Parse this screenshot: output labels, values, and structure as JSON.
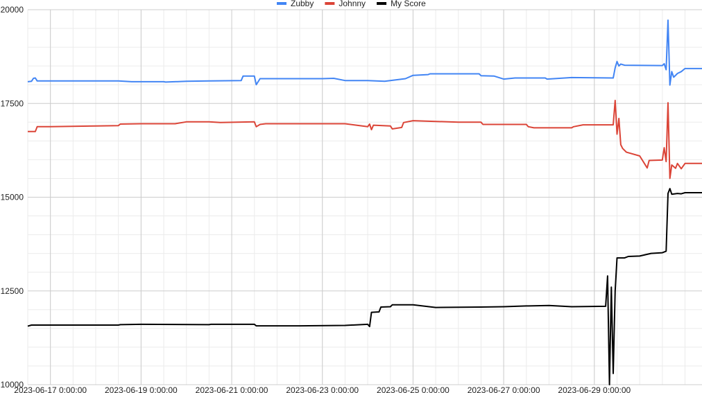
{
  "chart_data": {
    "type": "line",
    "legend_position": "top",
    "grid": true,
    "x_axis": {
      "kind": "date",
      "range": [
        "2023-06-16 12:00",
        "2023-07-01 09:00"
      ],
      "tick_labels": [
        {
          "label": "2023-06-17 0:00:00",
          "value": "2023-06-17 00:00"
        },
        {
          "label": "2023-06-19 0:00:00",
          "value": "2023-06-19 00:00"
        },
        {
          "label": "2023-06-21 0:00:00",
          "value": "2023-06-21 00:00"
        },
        {
          "label": "2023-06-23 0:00:00",
          "value": "2023-06-23 00:00"
        },
        {
          "label": "2023-06-25 0:00:00",
          "value": "2023-06-25 00:00"
        },
        {
          "label": "2023-06-27 0:00:00",
          "value": "2023-06-27 00:00"
        },
        {
          "label": "2023-06-29 0:00:00",
          "value": "2023-06-29 00:00"
        }
      ]
    },
    "y_axis": {
      "range": [
        10000,
        20000
      ],
      "tick_labels": [
        {
          "label": "10000",
          "value": 10000
        },
        {
          "label": "12500",
          "value": 12500
        },
        {
          "label": "15000",
          "value": 15000
        },
        {
          "label": "17500",
          "value": 17500
        },
        {
          "label": "20000",
          "value": 20000
        }
      ]
    },
    "series": [
      {
        "name": "Zubby",
        "color": "#4285f4",
        "points": [
          [
            "2023-06-16 12:00",
            18080
          ],
          [
            "2023-06-16 14:00",
            18090
          ],
          [
            "2023-06-16 15:00",
            18170
          ],
          [
            "2023-06-16 16:00",
            18180
          ],
          [
            "2023-06-16 17:00",
            18100
          ],
          [
            "2023-06-17 00:00",
            18100
          ],
          [
            "2023-06-18 12:00",
            18100
          ],
          [
            "2023-06-18 19:00",
            18080
          ],
          [
            "2023-06-19 12:00",
            18080
          ],
          [
            "2023-06-19 13:00",
            18070
          ],
          [
            "2023-06-20 00:00",
            18090
          ],
          [
            "2023-06-20 12:00",
            18100
          ],
          [
            "2023-06-21 05:00",
            18110
          ],
          [
            "2023-06-21 06:00",
            18230
          ],
          [
            "2023-06-21 12:00",
            18230
          ],
          [
            "2023-06-21 13:00",
            18000
          ],
          [
            "2023-06-21 15:00",
            18160
          ],
          [
            "2023-06-22 00:00",
            18160
          ],
          [
            "2023-06-23 00:00",
            18160
          ],
          [
            "2023-06-23 06:00",
            18170
          ],
          [
            "2023-06-23 12:00",
            18110
          ],
          [
            "2023-06-24 00:00",
            18110
          ],
          [
            "2023-06-24 09:00",
            18090
          ],
          [
            "2023-06-24 20:00",
            18160
          ],
          [
            "2023-06-25 00:00",
            18250
          ],
          [
            "2023-06-25 08:00",
            18270
          ],
          [
            "2023-06-25 09:00",
            18290
          ],
          [
            "2023-06-26 00:00",
            18290
          ],
          [
            "2023-06-26 11:00",
            18290
          ],
          [
            "2023-06-26 12:00",
            18240
          ],
          [
            "2023-06-26 19:00",
            18230
          ],
          [
            "2023-06-27 00:00",
            18150
          ],
          [
            "2023-06-27 06:00",
            18180
          ],
          [
            "2023-06-27 12:00",
            18180
          ],
          [
            "2023-06-27 22:00",
            18180
          ],
          [
            "2023-06-27 23:00",
            18150
          ],
          [
            "2023-06-28 12:00",
            18190
          ],
          [
            "2023-06-29 10:00",
            18180
          ],
          [
            "2023-06-29 11:00",
            18450
          ],
          [
            "2023-06-29 12:00",
            18620
          ],
          [
            "2023-06-29 13:00",
            18500
          ],
          [
            "2023-06-29 14:00",
            18550
          ],
          [
            "2023-06-29 16:00",
            18520
          ],
          [
            "2023-06-30 12:00",
            18510
          ],
          [
            "2023-06-30 13:00",
            18560
          ],
          [
            "2023-06-30 14:00",
            18400
          ],
          [
            "2023-06-30 15:00",
            19720
          ],
          [
            "2023-06-30 16:00",
            17990
          ],
          [
            "2023-06-30 17:00",
            18350
          ],
          [
            "2023-06-30 18:00",
            18200
          ],
          [
            "2023-06-30 20:00",
            18300
          ],
          [
            "2023-06-30 22:00",
            18350
          ],
          [
            "2023-07-01 00:00",
            18430
          ],
          [
            "2023-07-01 09:00",
            18430
          ]
        ]
      },
      {
        "name": "Johnny",
        "color": "#db4437",
        "points": [
          [
            "2023-06-16 12:00",
            16750
          ],
          [
            "2023-06-16 16:00",
            16750
          ],
          [
            "2023-06-16 17:00",
            16880
          ],
          [
            "2023-06-17 00:00",
            16880
          ],
          [
            "2023-06-18 00:00",
            16900
          ],
          [
            "2023-06-18 12:00",
            16910
          ],
          [
            "2023-06-18 13:00",
            16950
          ],
          [
            "2023-06-19 00:00",
            16960
          ],
          [
            "2023-06-19 18:00",
            16960
          ],
          [
            "2023-06-20 00:00",
            17010
          ],
          [
            "2023-06-20 12:00",
            17010
          ],
          [
            "2023-06-20 18:00",
            16990
          ],
          [
            "2023-06-21 12:00",
            17010
          ],
          [
            "2023-06-21 13:00",
            16880
          ],
          [
            "2023-06-21 15:00",
            16940
          ],
          [
            "2023-06-21 18:00",
            16960
          ],
          [
            "2023-06-22 12:00",
            16960
          ],
          [
            "2023-06-23 12:00",
            16960
          ],
          [
            "2023-06-23 18:00",
            16920
          ],
          [
            "2023-06-24 00:00",
            16880
          ],
          [
            "2023-06-24 01:00",
            16950
          ],
          [
            "2023-06-24 02:00",
            16800
          ],
          [
            "2023-06-24 03:00",
            16920
          ],
          [
            "2023-06-24 12:00",
            16900
          ],
          [
            "2023-06-24 13:00",
            16820
          ],
          [
            "2023-06-24 18:00",
            16860
          ],
          [
            "2023-06-24 19:00",
            16990
          ],
          [
            "2023-06-25 00:00",
            17040
          ],
          [
            "2023-06-26 00:00",
            17000
          ],
          [
            "2023-06-26 12:00",
            17000
          ],
          [
            "2023-06-26 13:00",
            16940
          ],
          [
            "2023-06-27 12:00",
            16940
          ],
          [
            "2023-06-27 13:00",
            16880
          ],
          [
            "2023-06-27 16:00",
            16850
          ],
          [
            "2023-06-28 12:00",
            16850
          ],
          [
            "2023-06-28 13:00",
            16880
          ],
          [
            "2023-06-28 18:00",
            16930
          ],
          [
            "2023-06-29 10:00",
            16930
          ],
          [
            "2023-06-29 11:00",
            17580
          ],
          [
            "2023-06-29 12:00",
            16680
          ],
          [
            "2023-06-29 13:00",
            17100
          ],
          [
            "2023-06-29 14:00",
            16400
          ],
          [
            "2023-06-29 15:00",
            16300
          ],
          [
            "2023-06-29 17:00",
            16200
          ],
          [
            "2023-06-30 00:00",
            16100
          ],
          [
            "2023-06-30 04:00",
            15780
          ],
          [
            "2023-06-30 05:00",
            15980
          ],
          [
            "2023-06-30 12:00",
            15990
          ],
          [
            "2023-06-30 13:00",
            16320
          ],
          [
            "2023-06-30 14:00",
            15950
          ],
          [
            "2023-06-30 15:00",
            17520
          ],
          [
            "2023-06-30 16:00",
            15500
          ],
          [
            "2023-06-30 17:00",
            15860
          ],
          [
            "2023-06-30 19:00",
            15770
          ],
          [
            "2023-06-30 20:00",
            15900
          ],
          [
            "2023-06-30 22:00",
            15760
          ],
          [
            "2023-07-01 00:00",
            15900
          ],
          [
            "2023-07-01 09:00",
            15900
          ]
        ]
      },
      {
        "name": "My Score",
        "color": "#000000",
        "points": [
          [
            "2023-06-16 12:00",
            11560
          ],
          [
            "2023-06-16 14:00",
            11590
          ],
          [
            "2023-06-17 00:00",
            11590
          ],
          [
            "2023-06-18 12:00",
            11590
          ],
          [
            "2023-06-18 13:00",
            11600
          ],
          [
            "2023-06-19 00:00",
            11610
          ],
          [
            "2023-06-20 12:00",
            11600
          ],
          [
            "2023-06-20 13:00",
            11610
          ],
          [
            "2023-06-21 12:00",
            11610
          ],
          [
            "2023-06-21 13:00",
            11570
          ],
          [
            "2023-06-22 12:00",
            11570
          ],
          [
            "2023-06-23 12:00",
            11580
          ],
          [
            "2023-06-24 00:00",
            11610
          ],
          [
            "2023-06-24 01:00",
            11550
          ],
          [
            "2023-06-24 02:00",
            11930
          ],
          [
            "2023-06-24 06:00",
            11940
          ],
          [
            "2023-06-24 07:00",
            12070
          ],
          [
            "2023-06-24 12:00",
            12080
          ],
          [
            "2023-06-24 13:00",
            12130
          ],
          [
            "2023-06-25 00:00",
            12130
          ],
          [
            "2023-06-25 12:00",
            12060
          ],
          [
            "2023-06-26 12:00",
            12070
          ],
          [
            "2023-06-27 00:00",
            12080
          ],
          [
            "2023-06-27 12:00",
            12100
          ],
          [
            "2023-06-28 00:00",
            12110
          ],
          [
            "2023-06-28 12:00",
            12080
          ],
          [
            "2023-06-29 06:00",
            12090
          ],
          [
            "2023-06-29 07:00",
            12900
          ],
          [
            "2023-06-29 08:00",
            10000
          ],
          [
            "2023-06-29 09:00",
            12600
          ],
          [
            "2023-06-29 10:00",
            10300
          ],
          [
            "2023-06-29 11:00",
            12500
          ],
          [
            "2023-06-29 12:00",
            13380
          ],
          [
            "2023-06-29 16:00",
            13380
          ],
          [
            "2023-06-29 18:00",
            13420
          ],
          [
            "2023-06-30 00:00",
            13430
          ],
          [
            "2023-06-30 06:00",
            13500
          ],
          [
            "2023-06-30 12:00",
            13520
          ],
          [
            "2023-06-30 14:00",
            13560
          ],
          [
            "2023-06-30 15:00",
            15100
          ],
          [
            "2023-06-30 16:00",
            15230
          ],
          [
            "2023-06-30 17:00",
            15080
          ],
          [
            "2023-06-30 20:00",
            15100
          ],
          [
            "2023-06-30 22:00",
            15090
          ],
          [
            "2023-07-01 00:00",
            15120
          ],
          [
            "2023-07-01 09:00",
            15120
          ]
        ]
      }
    ]
  }
}
